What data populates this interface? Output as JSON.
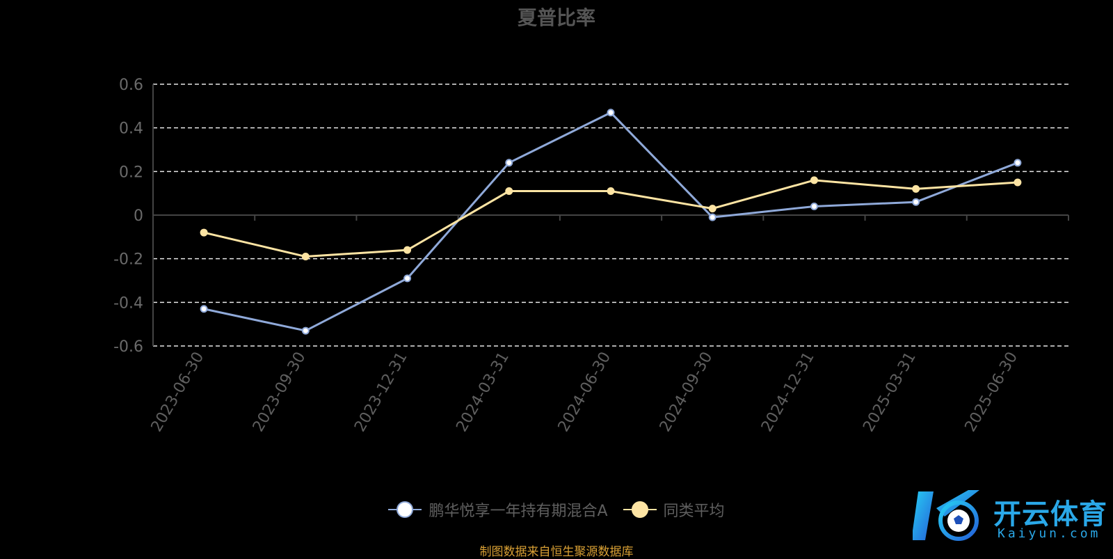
{
  "chart_data": {
    "type": "line",
    "title": "夏普比率",
    "categories": [
      "2023-06-30",
      "2023-09-30",
      "2023-12-31",
      "2024-03-31",
      "2024-06-30",
      "2024-09-30",
      "2024-12-31",
      "2025-03-31",
      "2025-06-30"
    ],
    "series": [
      {
        "name": "鹏华悦享一年持有期混合A",
        "color": "#8fa9d9",
        "values": [
          -0.43,
          -0.53,
          -0.29,
          0.24,
          0.47,
          -0.01,
          0.04,
          0.06,
          0.24
        ]
      },
      {
        "name": "同类平均",
        "color": "#fde4a3",
        "values": [
          -0.08,
          -0.19,
          -0.16,
          0.11,
          0.11,
          0.03,
          0.16,
          0.12,
          0.15
        ]
      }
    ],
    "yticks": [
      "0.6",
      "0.4",
      "0.2",
      "0",
      "-0.2",
      "-0.4",
      "-0.6"
    ],
    "ylim": [
      -0.6,
      0.6
    ],
    "grid": true,
    "legend_position": "bottom-center"
  },
  "source_note": "制图数据来自恒生聚源数据库",
  "watermark": {
    "brand": "开云体育",
    "domain": "Kaiyun.com",
    "icon": "soccer-ball-icon"
  }
}
